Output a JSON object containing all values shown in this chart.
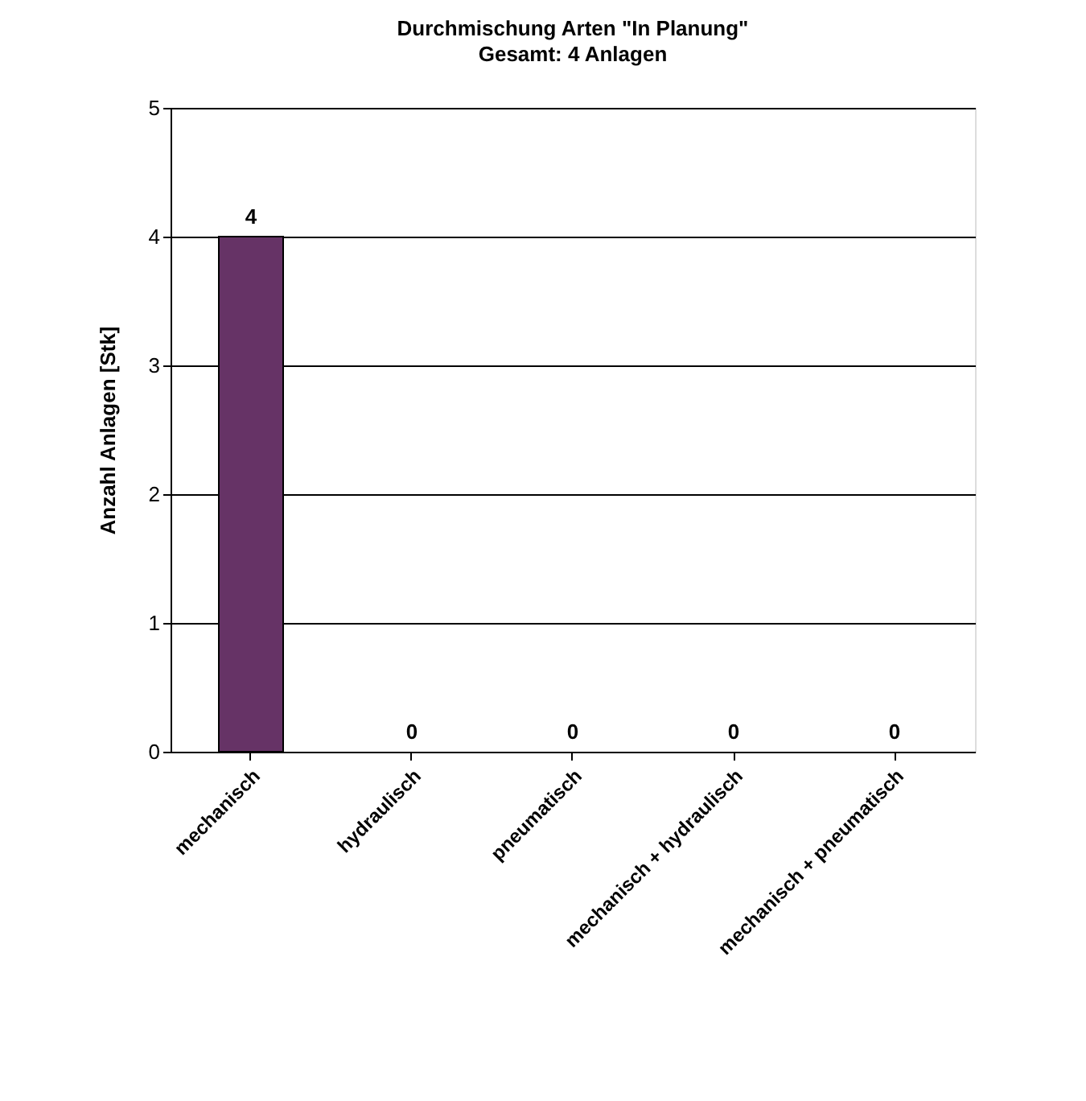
{
  "chart_data": {
    "type": "bar",
    "title": "Durchmischung Arten \"In Planung\"",
    "subtitle": "Gesamt: 4 Anlagen",
    "ylabel": "Anzahl Anlagen [Stk]",
    "categories": [
      "mechanisch",
      "hydraulisch",
      "pneumatisch",
      "mechanisch + hydraulisch",
      "mechanisch + pneumatisch"
    ],
    "values": [
      4,
      0,
      0,
      0,
      0
    ],
    "color": "#663366",
    "ylim": [
      0,
      5
    ],
    "yticks": [
      0,
      1,
      2,
      3,
      4,
      5
    ],
    "grid": "y",
    "data_labels": true
  }
}
